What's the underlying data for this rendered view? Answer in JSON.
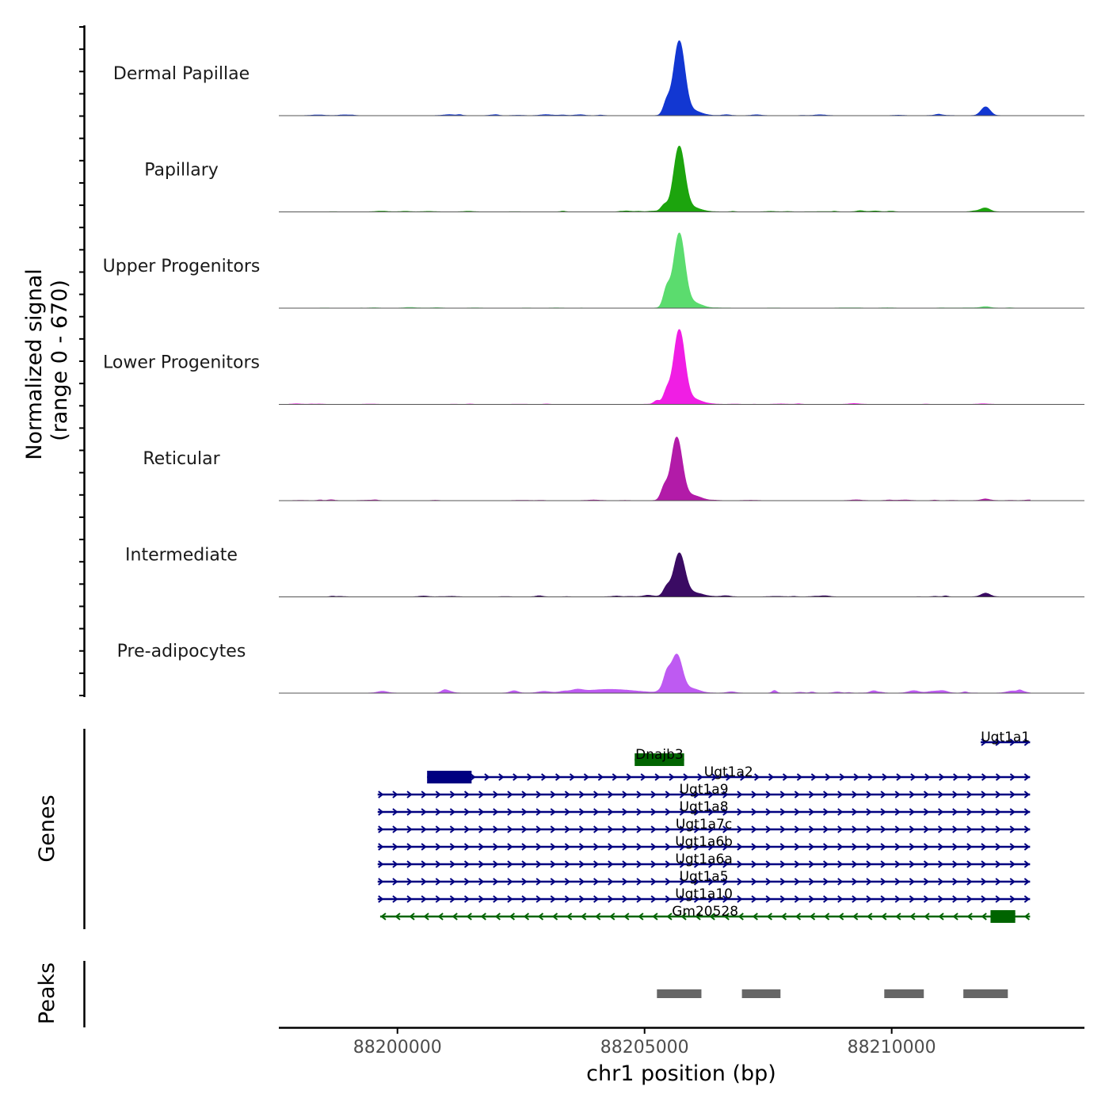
{
  "chart_data": {
    "type": "area",
    "title": "",
    "chromosome": "chr1",
    "xlim": [
      88197600,
      88213900
    ],
    "xlabel": "chr1 position (bp)",
    "x_ticks": [
      88200000,
      88205000,
      88210000
    ],
    "x_tick_labels": [
      "88200000",
      "88205000",
      "88210000"
    ],
    "ylabel_line1": "Normalized signal",
    "ylabel_line2": "(range 0 - 670)",
    "ylim": [
      0,
      670
    ],
    "signal_tracks": [
      {
        "name": "Dermal Papillae",
        "color": "#1237d2",
        "scale": 1.0,
        "bg": 0.1
      },
      {
        "name": "Papillary",
        "color": "#1ca40d",
        "scale": 1.0,
        "bg": 0.1
      },
      {
        "name": "Upper Progenitors",
        "color": "#5bdc6e",
        "scale": 1.0,
        "bg": 0.04
      },
      {
        "name": "Lower Progenitors",
        "color": "#f01ee4",
        "scale": 1.0,
        "bg": 0.06
      },
      {
        "name": "Reticular",
        "color": "#b21ba8",
        "scale": 1.0,
        "bg": 0.08
      },
      {
        "name": "Intermediate",
        "color": "#3a0b63",
        "scale": 1.0,
        "bg": 0.12
      },
      {
        "name": "Pre-adipocytes",
        "color": "#be5af2",
        "scale": 1.0,
        "bg": 0.3
      }
    ],
    "signal_peaks": [
      [
        {
          "center": 88205700,
          "width": 110,
          "height": 1.0
        },
        {
          "center": 88205450,
          "width": 70,
          "height": 0.18
        },
        {
          "center": 88205950,
          "width": 180,
          "height": 0.07
        },
        {
          "center": 88211900,
          "width": 90,
          "height": 0.12
        }
      ],
      [
        {
          "center": 88205700,
          "width": 110,
          "height": 0.88
        },
        {
          "center": 88205400,
          "width": 70,
          "height": 0.09
        },
        {
          "center": 88205950,
          "width": 180,
          "height": 0.06
        },
        {
          "center": 88211900,
          "width": 90,
          "height": 0.05
        }
      ],
      [
        {
          "center": 88205700,
          "width": 110,
          "height": 1.0
        },
        {
          "center": 88205450,
          "width": 70,
          "height": 0.25
        },
        {
          "center": 88205950,
          "width": 180,
          "height": 0.08
        },
        {
          "center": 88211900,
          "width": 90,
          "height": 0.02
        }
      ],
      [
        {
          "center": 88205700,
          "width": 110,
          "height": 1.0
        },
        {
          "center": 88205450,
          "width": 70,
          "height": 0.17
        },
        {
          "center": 88205950,
          "width": 180,
          "height": 0.07
        },
        {
          "center": 88205250,
          "width": 60,
          "height": 0.05
        }
      ],
      [
        {
          "center": 88205650,
          "width": 110,
          "height": 0.85
        },
        {
          "center": 88205400,
          "width": 70,
          "height": 0.17
        },
        {
          "center": 88205950,
          "width": 180,
          "height": 0.07
        },
        {
          "center": 88211900,
          "width": 90,
          "height": 0.02
        }
      ],
      [
        {
          "center": 88205700,
          "width": 110,
          "height": 0.58
        },
        {
          "center": 88205450,
          "width": 70,
          "height": 0.12
        },
        {
          "center": 88205950,
          "width": 180,
          "height": 0.06
        },
        {
          "center": 88211900,
          "width": 90,
          "height": 0.05
        }
      ],
      [
        {
          "center": 88205650,
          "width": 110,
          "height": 0.52
        },
        {
          "center": 88205450,
          "width": 70,
          "height": 0.22
        },
        {
          "center": 88205950,
          "width": 160,
          "height": 0.06
        },
        {
          "center": 88204300,
          "width": 500,
          "height": 0.05
        }
      ]
    ],
    "genes_label": "Genes",
    "genes": [
      {
        "name": "Ugt1a1",
        "start": 88211800,
        "end": 88212800,
        "strand": "+",
        "color": "#000080",
        "row": 0,
        "exons": []
      },
      {
        "name": "Dnajb3",
        "start": 88204800,
        "end": 88205800,
        "strand": "-",
        "color": "#006400",
        "row": 1,
        "exons": [
          [
            88204800,
            88205800
          ]
        ]
      },
      {
        "name": "Ugt1a2",
        "start": 88200600,
        "end": 88212800,
        "strand": "+",
        "color": "#000080",
        "row": 2,
        "exons": [
          [
            88200600,
            88201500
          ]
        ]
      },
      {
        "name": "Ugt1a9",
        "start": 88199600,
        "end": 88212800,
        "strand": "+",
        "color": "#000080",
        "row": 3,
        "exons": []
      },
      {
        "name": "Ugt1a8",
        "start": 88199600,
        "end": 88212800,
        "strand": "+",
        "color": "#000080",
        "row": 4,
        "exons": []
      },
      {
        "name": "Ugt1a7c",
        "start": 88199600,
        "end": 88212800,
        "strand": "+",
        "color": "#000080",
        "row": 5,
        "exons": []
      },
      {
        "name": "Ugt1a6b",
        "start": 88199600,
        "end": 88212800,
        "strand": "+",
        "color": "#000080",
        "row": 6,
        "exons": []
      },
      {
        "name": "Ugt1a6a",
        "start": 88199600,
        "end": 88212800,
        "strand": "+",
        "color": "#000080",
        "row": 7,
        "exons": []
      },
      {
        "name": "Ugt1a5",
        "start": 88199600,
        "end": 88212800,
        "strand": "+",
        "color": "#000080",
        "row": 8,
        "exons": []
      },
      {
        "name": "Ugt1a10",
        "start": 88199600,
        "end": 88212800,
        "strand": "+",
        "color": "#000080",
        "row": 9,
        "exons": []
      },
      {
        "name": "Gm20528",
        "start": 88199650,
        "end": 88212800,
        "strand": "-",
        "color": "#006400",
        "row": 10,
        "exons": [
          [
            88212000,
            88212500
          ]
        ]
      }
    ],
    "peaks_label": "Peaks",
    "peaks": [
      {
        "start": 88205250,
        "end": 88206150
      },
      {
        "start": 88206970,
        "end": 88207750
      },
      {
        "start": 88209850,
        "end": 88210650
      },
      {
        "start": 88211450,
        "end": 88212350
      }
    ],
    "peak_color": "#666666"
  }
}
